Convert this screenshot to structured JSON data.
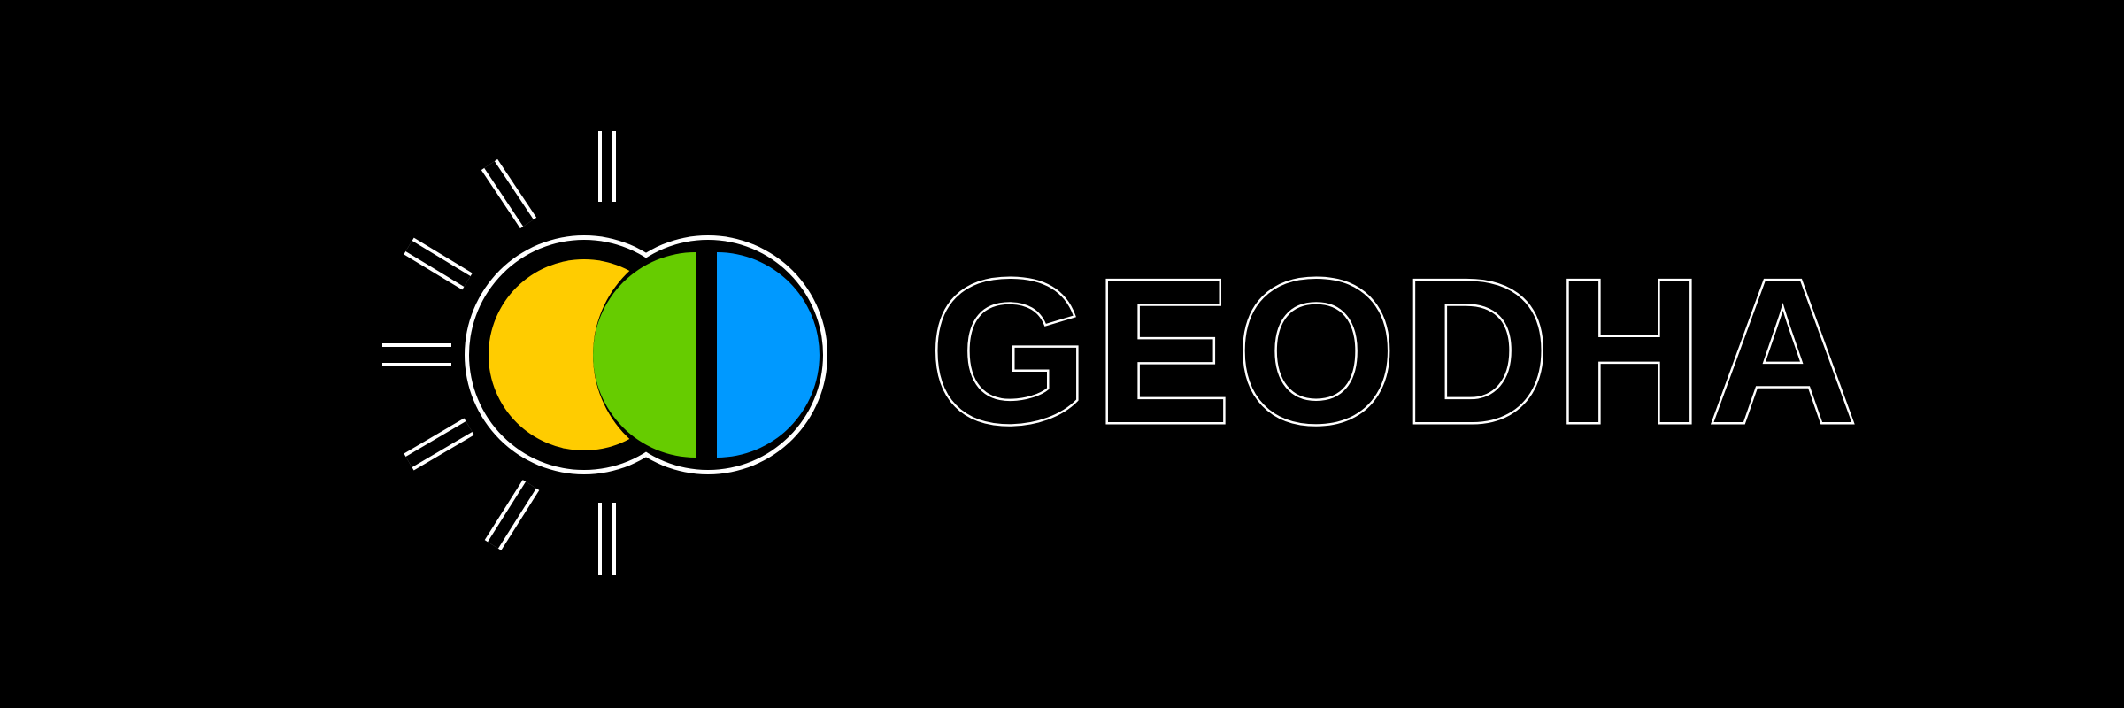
{
  "brand": {
    "wordmark": "GEODHA"
  },
  "colors": {
    "background": "#000000",
    "yellow": "#ffcc00",
    "green": "#66cc00",
    "blue": "#0099ff",
    "outline": "#000000",
    "halo": "#ffffff"
  }
}
